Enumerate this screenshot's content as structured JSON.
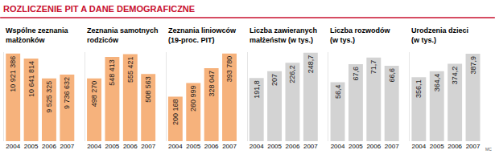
{
  "title": "ROZLICZENIE PIT A DANE DEMOGRAFICZNE",
  "credit": "MC",
  "chart_data": [
    {
      "type": "bar",
      "title": "Wspólne zeznania małżonków",
      "categories": [
        "2004",
        "2005",
        "2006",
        "2007"
      ],
      "values": [
        10921386,
        10641814,
        9525325,
        9736632
      ],
      "value_labels": [
        "10 921 386",
        "10 641 814",
        "9 525 325",
        "9 736 632"
      ],
      "color": "#f6b27c",
      "ylim": [
        6000000,
        11000000
      ],
      "data_labels": true,
      "tick_labels": "x",
      "grid": false
    },
    {
      "type": "bar",
      "title": "Zeznania samotnych rodziców",
      "categories": [
        "2004",
        "2005",
        "2006",
        "2007"
      ],
      "values": [
        498270,
        548413,
        555421,
        508563
      ],
      "value_labels": [
        "498 270",
        "548 413",
        "555 421",
        "508 563"
      ],
      "color": "#f6b27c",
      "ylim": [
        350000,
        560000
      ],
      "data_labels": true,
      "tick_labels": "x",
      "grid": false
    },
    {
      "type": "bar",
      "title": "Zeznania liniowców (19-proc. PIT)",
      "categories": [
        "2004",
        "2005",
        "2006",
        "2007"
      ],
      "values": [
        200168,
        260999,
        328047,
        393780
      ],
      "value_labels": [
        "200 168",
        "260 999",
        "328 047",
        "393 780"
      ],
      "color": "#f6b27c",
      "ylim": [
        0,
        400000
      ],
      "data_labels": true,
      "tick_labels": "x",
      "grid": false
    },
    {
      "type": "bar",
      "title": "Liczba zawieranych małżeństw (w tys.)",
      "categories": [
        "2004",
        "2005",
        "2006",
        "2007"
      ],
      "values": [
        191.8,
        207,
        226.2,
        248.7
      ],
      "value_labels": [
        "191,8",
        "207",
        "226,2",
        "248,7"
      ],
      "color": "#d3d3d3",
      "ylim": [
        50,
        250
      ],
      "data_labels": true,
      "tick_labels": "x",
      "grid": false
    },
    {
      "type": "bar",
      "title": "Liczba rozwodów (w tys.)",
      "categories": [
        "2004",
        "2005",
        "2006",
        "2007"
      ],
      "values": [
        56.4,
        67.6,
        71.7,
        66.6
      ],
      "value_labels": [
        "56,4",
        "67,6",
        "71,7",
        "66,6"
      ],
      "color": "#d3d3d3",
      "ylim": [
        20,
        75
      ],
      "data_labels": true,
      "tick_labels": "x",
      "grid": false
    },
    {
      "type": "bar",
      "title": "Urodzenia dzieci (w tys.)",
      "categories": [
        "2004",
        "2005",
        "2006",
        "2007"
      ],
      "values": [
        356.1,
        364.4,
        374.2,
        387.9
      ],
      "value_labels": [
        "356,1",
        "364,4",
        "374,2",
        "387,9"
      ],
      "color": "#d3d3d3",
      "ylim": [
        270,
        390
      ],
      "data_labels": true,
      "tick_labels": "x",
      "grid": false
    }
  ]
}
